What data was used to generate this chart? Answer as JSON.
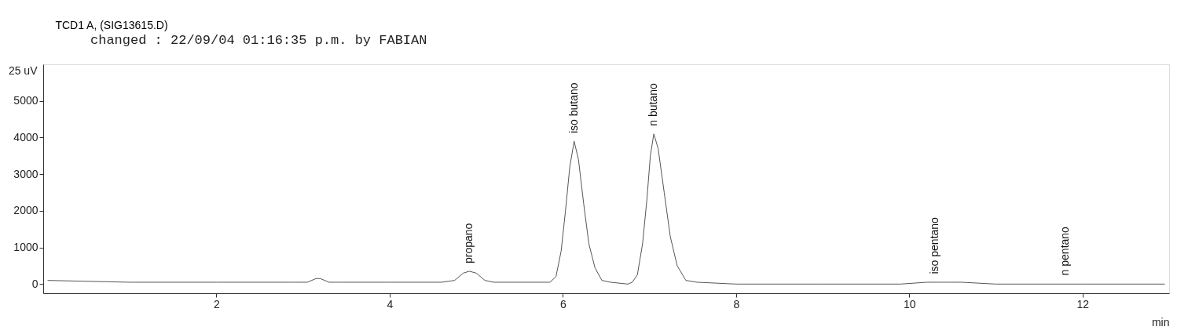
{
  "chart_data": {
    "type": "line",
    "title": "TCD1 A, (SIG13615.D)",
    "xlabel": "min",
    "x": [
      0.05,
      1,
      2,
      2.9,
      3.05,
      3.15,
      3.2,
      3.3,
      3.4,
      4,
      4.6,
      4.75,
      4.85,
      4.92,
      5.0,
      5.1,
      5.2,
      5.85,
      5.92,
      5.98,
      6.03,
      6.08,
      6.13,
      6.18,
      6.24,
      6.3,
      6.37,
      6.45,
      6.55,
      6.75,
      6.8,
      6.86,
      6.92,
      6.97,
      7.01,
      7.05,
      7.1,
      7.17,
      7.24,
      7.32,
      7.42,
      7.55,
      8,
      9,
      9.9,
      10.2,
      10.4,
      10.6,
      11,
      12,
      12.95
    ],
    "series": [
      {
        "color": "#555555",
        "values": [
          100,
          50,
          50,
          50,
          50,
          150,
          150,
          50,
          50,
          50,
          50,
          100,
          300,
          350,
          300,
          100,
          50,
          50,
          200,
          900,
          2000,
          3200,
          3900,
          3400,
          2200,
          1100,
          450,
          100,
          50,
          0,
          50,
          250,
          1100,
          2300,
          3500,
          4100,
          3700,
          2500,
          1300,
          500,
          100,
          50,
          0,
          0,
          0,
          50,
          50,
          50,
          0,
          0,
          0
        ]
      }
    ],
    "xlim": [
      0,
      13
    ],
    "xticks": [
      2,
      4,
      6,
      8,
      10,
      12
    ],
    "ylim": [
      -250,
      6000
    ],
    "yticks": [
      0,
      1000,
      2000,
      3000,
      4000,
      5000
    ],
    "ylabel": "25 uV",
    "grid": false,
    "marker": "none",
    "line_style": "solid",
    "annotations": [
      "changed      : 22/09/04 01:16:35 p.m. by FABIAN",
      {
        "text": "propano",
        "x": 4.92,
        "y": 350
      },
      {
        "text": "iso butano",
        "x": 6.13,
        "y": 3900
      },
      {
        "text": "n butano",
        "x": 7.05,
        "y": 4100
      },
      {
        "text": "iso pentano",
        "x": 10.3,
        "y": 60
      },
      {
        "text": "n pentano",
        "x": 11.8,
        "y": 20
      }
    ]
  }
}
